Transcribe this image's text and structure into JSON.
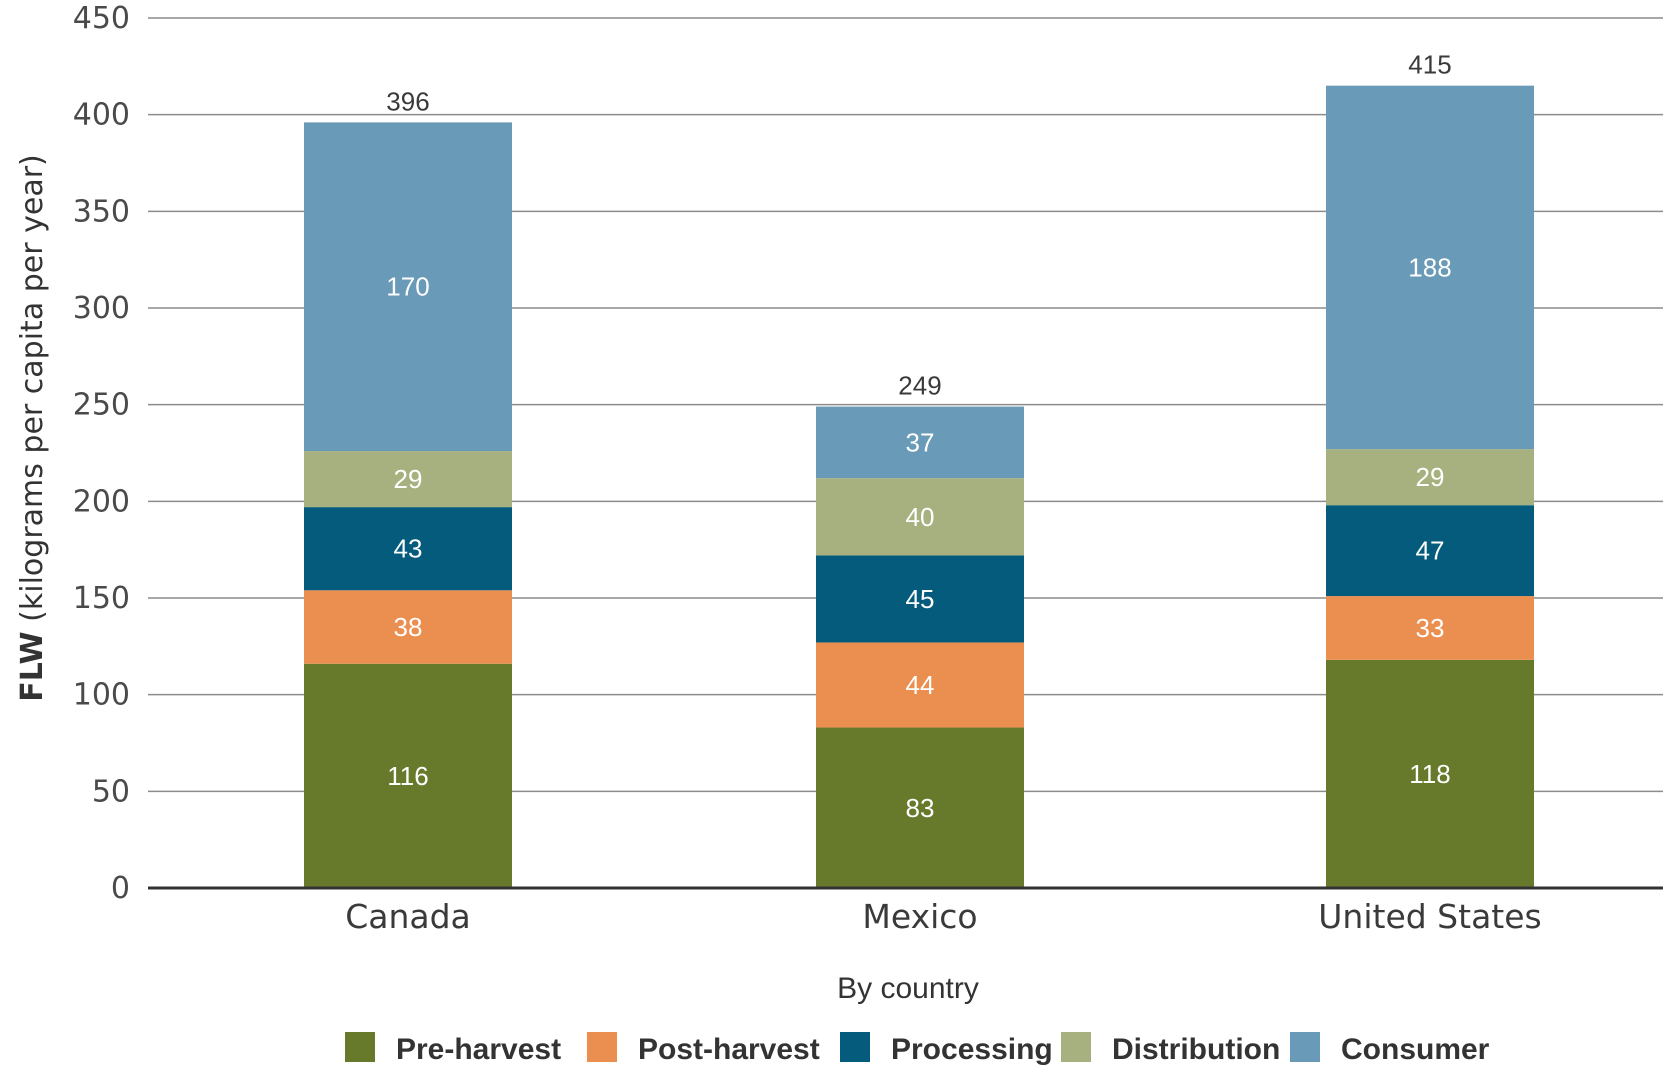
{
  "chart_data": {
    "type": "bar",
    "stacked": true,
    "categories": [
      "Canada",
      "Mexico",
      "United States"
    ],
    "series": [
      {
        "name": "Pre-harvest",
        "color": "#677a2c",
        "values": [
          116,
          83,
          118
        ]
      },
      {
        "name": "Post-harvest",
        "color": "#eb8f50",
        "values": [
          38,
          44,
          33
        ]
      },
      {
        "name": "Processing",
        "color": "#055b7c",
        "values": [
          43,
          45,
          47
        ]
      },
      {
        "name": "Distribution",
        "color": "#a7b17f",
        "values": [
          29,
          40,
          29
        ]
      },
      {
        "name": "Consumer",
        "color": "#699ab7",
        "values": [
          170,
          37,
          188
        ]
      }
    ],
    "totals": [
      396,
      249,
      415
    ],
    "xlabel": "By country",
    "ylabel_bold": "FLW",
    "ylabel_rest": " (kilograms per capita per year)",
    "ylim": [
      0,
      450
    ],
    "yticks": [
      0,
      50,
      100,
      150,
      200,
      250,
      300,
      350,
      400,
      450
    ],
    "grid": true,
    "legend_position": "bottom"
  }
}
